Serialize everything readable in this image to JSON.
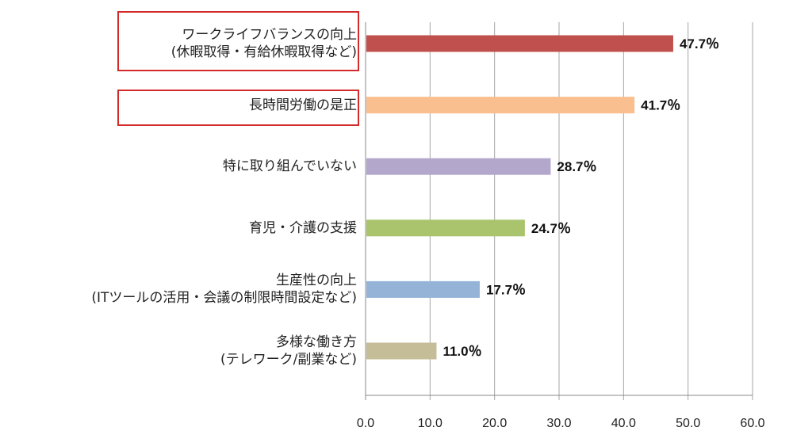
{
  "chart_data": {
    "type": "bar",
    "orientation": "horizontal",
    "categories": [
      [
        "ワークライフバランスの向上",
        "(休暇取得・有給休暇取得など)"
      ],
      [
        "長時間労働の是正"
      ],
      [
        "特に取り組んでいない"
      ],
      [
        "育児・介護の支援"
      ],
      [
        "生産性の向上",
        "(ITツールの活用・会議の制限時間設定など)"
      ],
      [
        "多様な働き方",
        "(テレワーク/副業など)"
      ]
    ],
    "values": [
      47.7,
      41.7,
      28.7,
      24.7,
      17.7,
      11.0
    ],
    "data_labels": [
      "47.7％",
      "41.7％",
      "28.7％",
      "24.7％",
      "17.7％",
      "11.0％"
    ],
    "colors": [
      "#c0504d",
      "#f9bf8f",
      "#b4a7cc",
      "#a9c46c",
      "#95b3d7",
      "#c4bd97"
    ],
    "highlighted": [
      0,
      1
    ],
    "highlight_color": "#d42a2a",
    "xlim": [
      0,
      60
    ],
    "xticks": [
      "0.0",
      "10.0",
      "20.0",
      "30.0",
      "40.0",
      "50.0",
      "60.0"
    ],
    "grid": true,
    "title": "",
    "xlabel": "",
    "ylabel": ""
  }
}
